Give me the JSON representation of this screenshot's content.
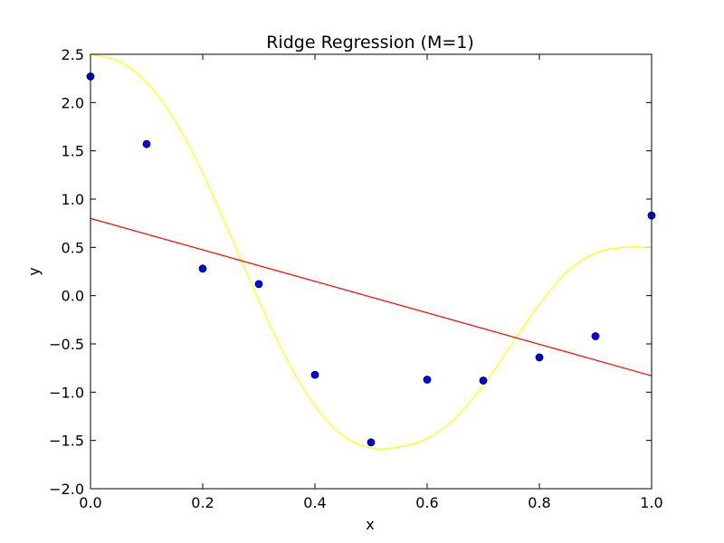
{
  "chart_data": {
    "type": "line",
    "title": "Ridge Regression (M=1)",
    "xlabel": "x",
    "ylabel": "y",
    "xlim": [
      0.0,
      1.0
    ],
    "ylim": [
      -2.0,
      2.5
    ],
    "xticks": [
      "0.0",
      "0.2",
      "0.4",
      "0.6",
      "0.8",
      "1.0"
    ],
    "yticks": [
      "−2.0",
      "−1.5",
      "−1.0",
      "−0.5",
      "0.0",
      "0.5",
      "1.0",
      "1.5",
      "2.0",
      "2.5"
    ],
    "grid": false,
    "series": [
      {
        "kind": "scatter",
        "color": "#0000ff",
        "x": [
          0.0,
          0.1,
          0.2,
          0.3,
          0.4,
          0.5,
          0.6,
          0.7,
          0.8,
          0.9,
          1.0
        ],
        "y": [
          2.27,
          1.57,
          0.28,
          0.12,
          -0.82,
          -1.52,
          -0.87,
          -0.88,
          -0.64,
          -0.42,
          0.83
        ]
      },
      {
        "kind": "line",
        "color": "#ffff00",
        "x": [
          0.0,
          0.05,
          0.1,
          0.15,
          0.2,
          0.25,
          0.3,
          0.35,
          0.4,
          0.45,
          0.5,
          0.55,
          0.6,
          0.65,
          0.7,
          0.75,
          0.8,
          0.85,
          0.9,
          0.95,
          1.0
        ],
        "y": [
          2.5,
          2.43,
          2.21,
          1.82,
          1.27,
          0.62,
          -0.05,
          -0.66,
          -1.14,
          -1.45,
          -1.58,
          -1.57,
          -1.48,
          -1.27,
          -0.93,
          -0.51,
          -0.09,
          0.25,
          0.44,
          0.5,
          0.5
        ]
      },
      {
        "kind": "line",
        "color": "#ff0000",
        "x": [
          0.0,
          1.0
        ],
        "y": [
          0.8,
          -0.83
        ]
      }
    ]
  }
}
